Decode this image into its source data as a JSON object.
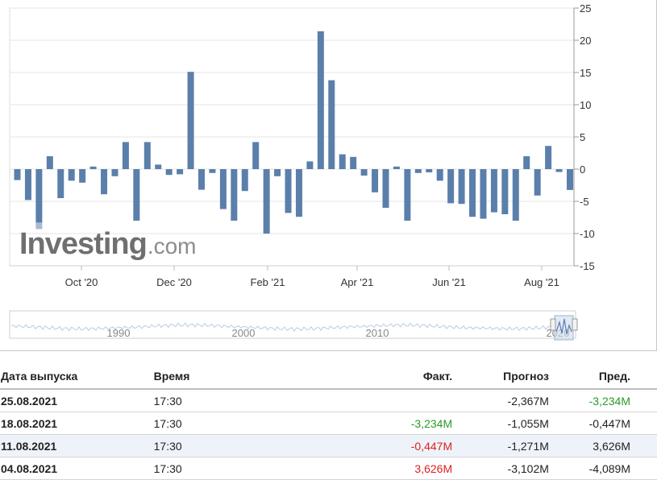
{
  "logo": {
    "main": "Investing",
    "suffix": ".com"
  },
  "colors": {
    "bar": "#5b7fab",
    "bar_light": "#a7b9d4",
    "grid": "#e6e6e6",
    "positive": "#2a9a2a",
    "negative": "#e02020",
    "row_alt": "#eef3fa"
  },
  "chart_data": {
    "type": "bar",
    "x_tick_labels": [
      "Oct '20",
      "Dec '20",
      "Feb '21",
      "Apr '21",
      "Jun '21",
      "Aug '21"
    ],
    "y_ticks": [
      25,
      20,
      15,
      10,
      5,
      0,
      -5,
      -10,
      -15
    ],
    "ylim": [
      -15,
      25
    ],
    "grid": true,
    "y_axis_position": "right",
    "values": [
      -1.7,
      -4.8,
      -9.3,
      2.0,
      -4.5,
      -1.8,
      -2.1,
      0.4,
      -3.9,
      -1.1,
      4.2,
      -8.0,
      4.2,
      0.7,
      -0.9,
      -0.8,
      15.1,
      -3.2,
      -0.6,
      -6.2,
      -8.0,
      -3.4,
      4.2,
      -10.0,
      -1.1,
      -6.8,
      -7.4,
      1.2,
      21.4,
      13.8,
      2.3,
      1.9,
      -1.0,
      -3.6,
      -6.0,
      0.4,
      -8.0,
      -0.6,
      -0.5,
      -1.8,
      -5.3,
      -5.4,
      -7.4,
      -7.7,
      -6.7,
      -7.0,
      -8.0,
      2.0,
      -4.1,
      3.6,
      -0.447,
      -3.234
    ],
    "navigator": {
      "labels": [
        "1990",
        "2000",
        "2010",
        "2020"
      ]
    }
  },
  "table": {
    "headers": {
      "date": "Дата выпуска",
      "time": "Время",
      "actual": "Факт.",
      "forecast": "Прогноз",
      "previous": "Пред."
    },
    "rows": [
      {
        "date": "25.08.2021",
        "time": "17:30",
        "actual": "",
        "forecast": "-2,367M",
        "previous": "-3,234M",
        "actual_state": "",
        "previous_state": "pos"
      },
      {
        "date": "18.08.2021",
        "time": "17:30",
        "actual": "-3,234M",
        "forecast": "-1,055M",
        "previous": "-0,447M",
        "actual_state": "pos",
        "previous_state": ""
      },
      {
        "date": "11.08.2021",
        "time": "17:30",
        "actual": "-0,447M",
        "forecast": "-1,271M",
        "previous": "3,626M",
        "actual_state": "neg",
        "previous_state": ""
      },
      {
        "date": "04.08.2021",
        "time": "17:30",
        "actual": "3,626M",
        "forecast": "-3,102M",
        "previous": "-4,089M",
        "actual_state": "neg",
        "previous_state": ""
      }
    ]
  }
}
